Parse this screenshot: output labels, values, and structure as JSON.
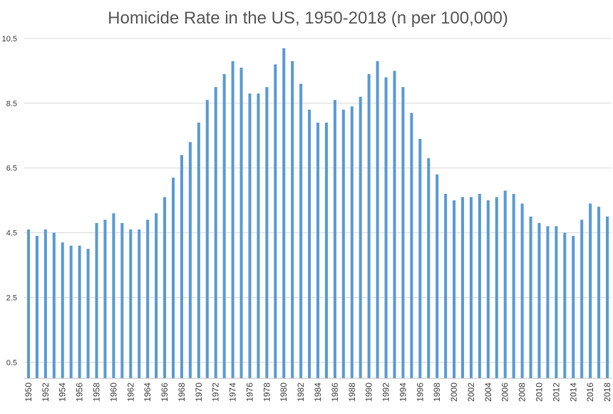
{
  "chart_data": {
    "type": "bar",
    "title": "Homicide Rate in the US, 1950-2018 (n per 100,000)",
    "xlabel": "",
    "ylabel": "",
    "ylim": [
      0,
      10.5
    ],
    "y_ticks": [
      0.5,
      2.5,
      4.5,
      6.5,
      8.5,
      10.5
    ],
    "y_tick_labels": [
      "0.5",
      "2.5",
      "4.5",
      "6.5",
      "8.5",
      "10.5"
    ],
    "grid": true,
    "legend": "none",
    "bar_color": "#5b9bd5",
    "categories": [
      "1950",
      "1951",
      "1952",
      "1953",
      "1954",
      "1955",
      "1956",
      "1957",
      "1958",
      "1959",
      "1960",
      "1961",
      "1962",
      "1963",
      "1964",
      "1965",
      "1966",
      "1967",
      "1968",
      "1969",
      "1970",
      "1971",
      "1972",
      "1973",
      "1974",
      "1975",
      "1976",
      "1977",
      "1978",
      "1979",
      "1980",
      "1981",
      "1982",
      "1983",
      "1984",
      "1985",
      "1986",
      "1987",
      "1988",
      "1989",
      "1990",
      "1991",
      "1992",
      "1993",
      "1994",
      "1995",
      "1996",
      "1997",
      "1998",
      "1999",
      "2000",
      "2001",
      "2002",
      "2003",
      "2004",
      "2005",
      "2006",
      "2007",
      "2008",
      "2009",
      "2010",
      "2011",
      "2012",
      "2013",
      "2014",
      "2015",
      "2016",
      "2017",
      "2018"
    ],
    "x_tick_labels": [
      "1950",
      "1952",
      "1954",
      "1956",
      "1958",
      "1960",
      "1962",
      "1964",
      "1966",
      "1968",
      "1970",
      "1972",
      "1974",
      "1976",
      "1978",
      "1980",
      "1982",
      "1984",
      "1986",
      "1988",
      "1990",
      "1992",
      "1994",
      "1996",
      "1998",
      "2000",
      "2002",
      "2004",
      "2006",
      "2008",
      "2010",
      "2012",
      "2014",
      "2016",
      "2018"
    ],
    "values": [
      4.6,
      4.4,
      4.6,
      4.5,
      4.2,
      4.1,
      4.1,
      4.0,
      4.8,
      4.9,
      5.1,
      4.8,
      4.6,
      4.6,
      4.9,
      5.1,
      5.6,
      6.2,
      6.9,
      7.3,
      7.9,
      8.6,
      9.0,
      9.4,
      9.8,
      9.6,
      8.8,
      8.8,
      9.0,
      9.7,
      10.2,
      9.8,
      9.1,
      8.3,
      7.9,
      7.9,
      8.6,
      8.3,
      8.4,
      8.7,
      9.4,
      9.8,
      9.3,
      9.5,
      9.0,
      8.2,
      7.4,
      6.8,
      6.3,
      5.7,
      5.5,
      5.6,
      5.6,
      5.7,
      5.5,
      5.6,
      5.8,
      5.7,
      5.4,
      5.0,
      4.8,
      4.7,
      4.7,
      4.5,
      4.4,
      4.9,
      5.4,
      5.3,
      5.0
    ]
  }
}
